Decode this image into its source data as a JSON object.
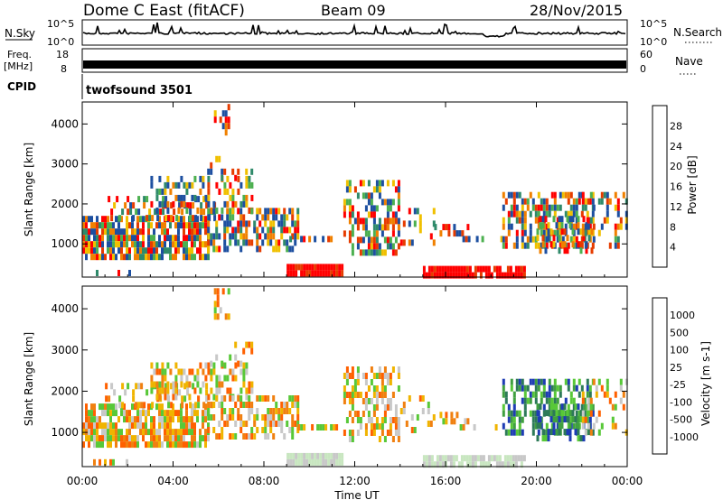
{
  "header": {
    "radar": "Dome C East (fitACF)",
    "beam": "Beam 09",
    "date": "28/Nov/2015"
  },
  "panels": {
    "nsky": {
      "label": "N.Sky",
      "tick_top": "10^5",
      "tick_bottom": "10^0",
      "right_label": "N.Search",
      "right_top": "10^5",
      "right_bottom": "10^0"
    },
    "freq": {
      "label_line1": "Freq.",
      "label_line2": "[MHz]",
      "tick_top": "18",
      "tick_bottom": "8",
      "right_label": "Nave",
      "right_top": "60",
      "right_bottom": "0"
    },
    "cpid": {
      "label": "CPID",
      "value": "twofsound 3501"
    }
  },
  "chart_data": [
    {
      "type": "heatmap",
      "name": "power",
      "ylabel": "Slant Range [km]",
      "yticks": [
        "1000",
        "2000",
        "3000",
        "4000"
      ],
      "colorbar_label": "Power [dB]",
      "colorbar_ticks": [
        "4",
        "8",
        "12",
        "16",
        "20",
        "24",
        "28"
      ],
      "colors": [
        "#0000ff",
        "#1d4fa0",
        "#2f8a6a",
        "#4cb050",
        "#f0c000",
        "#f08000",
        "#e63c00",
        "#ff0000"
      ]
    },
    {
      "type": "heatmap",
      "name": "velocity",
      "ylabel": "Slant Range [km]",
      "yticks": [
        "1000",
        "2000",
        "3000",
        "4000"
      ],
      "colorbar_label": "Velocity [m s-1]",
      "colorbar_ticks": [
        "1000",
        "500",
        "100",
        "25",
        "-25",
        "-100",
        "-500",
        "-1000"
      ],
      "colors": [
        "#1e3cb4",
        "#2d7a58",
        "#40a040",
        "#58c838",
        "#c8c8c8",
        "#f0b400",
        "#f08010",
        "#ff6000",
        "#ff0000"
      ]
    }
  ],
  "xaxis": {
    "ticks": [
      "00:00",
      "04:00",
      "08:00",
      "12:00",
      "16:00",
      "20:00",
      "00:00"
    ],
    "label": "Time UT"
  }
}
